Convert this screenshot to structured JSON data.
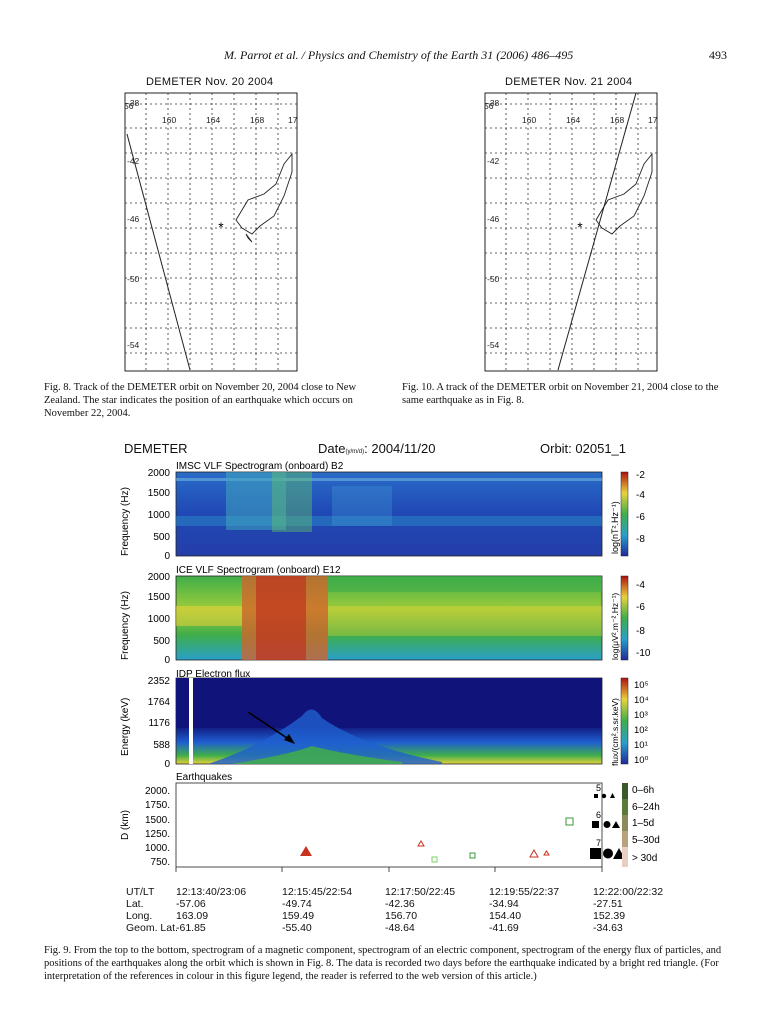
{
  "header": {
    "journal": "M. Parrot et al. / Physics and Chemistry of the Earth 31 (2006) 486–495",
    "page": "493"
  },
  "map_left": {
    "title": "DEMETER Nov. 20 2004",
    "lon_ticks": [
      "56",
      "160",
      "164",
      "168",
      "17"
    ],
    "lat_ticks": [
      "-38",
      "-42",
      "-46",
      "-50",
      "-54"
    ],
    "caption": "Fig. 8. Track of the DEMETER orbit on November 20, 2004 close to New Zealand. The star indicates the position of an earthquake which occurs on November 22, 2004."
  },
  "map_right": {
    "title": "DEMETER Nov. 21 2004",
    "lon_ticks": [
      "56",
      "160",
      "164",
      "168",
      "17"
    ],
    "lat_ticks": [
      "-38",
      "-42",
      "-46",
      "-50",
      "-54"
    ],
    "caption": "Fig. 10. A track of the DEMETER orbit on November 21, 2004 close to the same earthquake as in Fig. 8."
  },
  "figure9": {
    "mission": "DEMETER",
    "date_label": "Date",
    "date_sub": "(y/m/d)",
    "date_value": ": 2004/11/20",
    "orbit": "Orbit: 02051_1",
    "panel1": {
      "title": "IMSC VLF Spectrogram (onboard) B2",
      "ylabel": "Frequency (Hz)",
      "yticks": [
        "2000",
        "1500",
        "1000",
        "500",
        "0"
      ],
      "cbar_label": "log(nT².Hz⁻¹)",
      "cbar_ticks": [
        "-2",
        "-4",
        "-6",
        "-8"
      ]
    },
    "panel2": {
      "title": "ICE VLF Spectrogram (onboard) E12",
      "ylabel": "Frequency (Hz)",
      "yticks": [
        "2000",
        "1500",
        "1000",
        "500",
        "0"
      ],
      "cbar_label": "log(μV².m⁻².Hz⁻¹)",
      "cbar_ticks": [
        "-4",
        "-6",
        "-8",
        "-10"
      ]
    },
    "panel3": {
      "title": "IDP Electron flux",
      "ylabel": "Energy (keV)",
      "yticks": [
        "2352",
        "1764",
        "1176",
        "588",
        "0"
      ],
      "cbar_label": "flux/(cm².s.sr.keV)",
      "cbar_ticks": [
        "10⁵",
        "10⁴",
        "10³",
        "10²",
        "10¹",
        "10⁰"
      ]
    },
    "panel4": {
      "title": "Earthquakes",
      "ylabel": "D (km)",
      "yticks": [
        "2000.",
        "1750.",
        "1500.",
        "1250.",
        "1000.",
        "750."
      ],
      "legend_mags": [
        "5",
        "6",
        "7"
      ],
      "legend_times": [
        "0–6h",
        "6–24h",
        "1–5d",
        "5–30d",
        "> 30d"
      ]
    },
    "time_axis": {
      "row_labels": [
        "UT/LT",
        "Lat.",
        "Long.",
        "Geom. Lat."
      ],
      "columns": [
        [
          "12:13:40/23:06",
          "-57.06",
          "163.09",
          "-61.85"
        ],
        [
          "12:15:45/22:54",
          "-49.74",
          "159.49",
          "-55.40"
        ],
        [
          "12:17:50/22:45",
          "-42.36",
          "156.70",
          "-48.64"
        ],
        [
          "12:19:55/22:37",
          "-34.94",
          "154.40",
          "-41.69"
        ],
        [
          "12:22:00/22:32",
          "-27.51",
          "152.39",
          "-34.63"
        ]
      ]
    },
    "caption": "Fig. 9. From the top to the bottom, spectrogram of a magnetic component, spectrogram of an electric component, spectrogram of the energy flux of particles, and positions of the earthquakes along the orbit which is shown in Fig. 8. The data is recorded two days before the earthquake indicated by a bright red triangle. (For interpretation of the references in colour in this figure legend, the reader is referred to the web version of this article.)"
  },
  "colors": {
    "spec_blue": "#1f3fae",
    "spec_green": "#3fae4a",
    "spec_yellow": "#e8d23a",
    "spec_red": "#c8321e",
    "flux_navy": "#10147a",
    "quake_red": "#c8321e",
    "quake_green": "#3a9a3a"
  }
}
